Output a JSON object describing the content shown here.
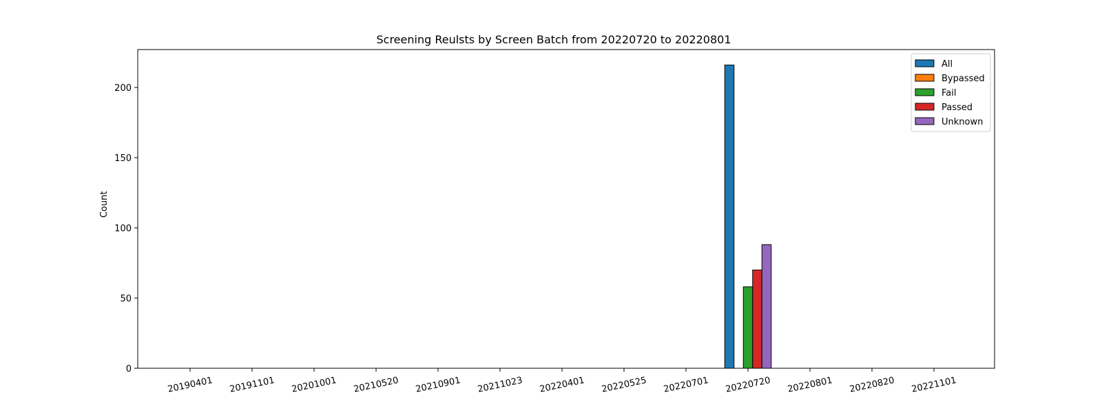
{
  "chart_data": {
    "type": "bar",
    "title": "Screening Reulsts by Screen Batch from 20220720 to 20220801",
    "xlabel": "",
    "ylabel": "Count",
    "ylim": [
      0,
      227
    ],
    "yticks": [
      0,
      50,
      100,
      150,
      200
    ],
    "grid": false,
    "legend_position": "top-right",
    "categories": [
      "20190401",
      "20191101",
      "20201001",
      "20210520",
      "20210901",
      "20211023",
      "20220401",
      "20220525",
      "20220701",
      "20220720",
      "20220801",
      "20220820",
      "20221101"
    ],
    "series": [
      {
        "name": "All",
        "color": "#1f77b4",
        "values": [
          0,
          0,
          0,
          0,
          0,
          0,
          0,
          0,
          0,
          216,
          0,
          0,
          0
        ]
      },
      {
        "name": "Bypassed",
        "color": "#ff7f0e",
        "values": [
          0,
          0,
          0,
          0,
          0,
          0,
          0,
          0,
          0,
          0,
          0,
          0,
          0
        ]
      },
      {
        "name": "Fail",
        "color": "#2ca02c",
        "values": [
          0,
          0,
          0,
          0,
          0,
          0,
          0,
          0,
          0,
          58,
          0,
          0,
          0
        ]
      },
      {
        "name": "Passed",
        "color": "#d62728",
        "values": [
          0,
          0,
          0,
          0,
          0,
          0,
          0,
          0,
          0,
          70,
          0,
          0,
          0
        ]
      },
      {
        "name": "Unknown",
        "color": "#9467bd",
        "values": [
          0,
          0,
          0,
          0,
          0,
          0,
          0,
          0,
          0,
          88,
          0,
          0,
          0
        ]
      }
    ]
  }
}
